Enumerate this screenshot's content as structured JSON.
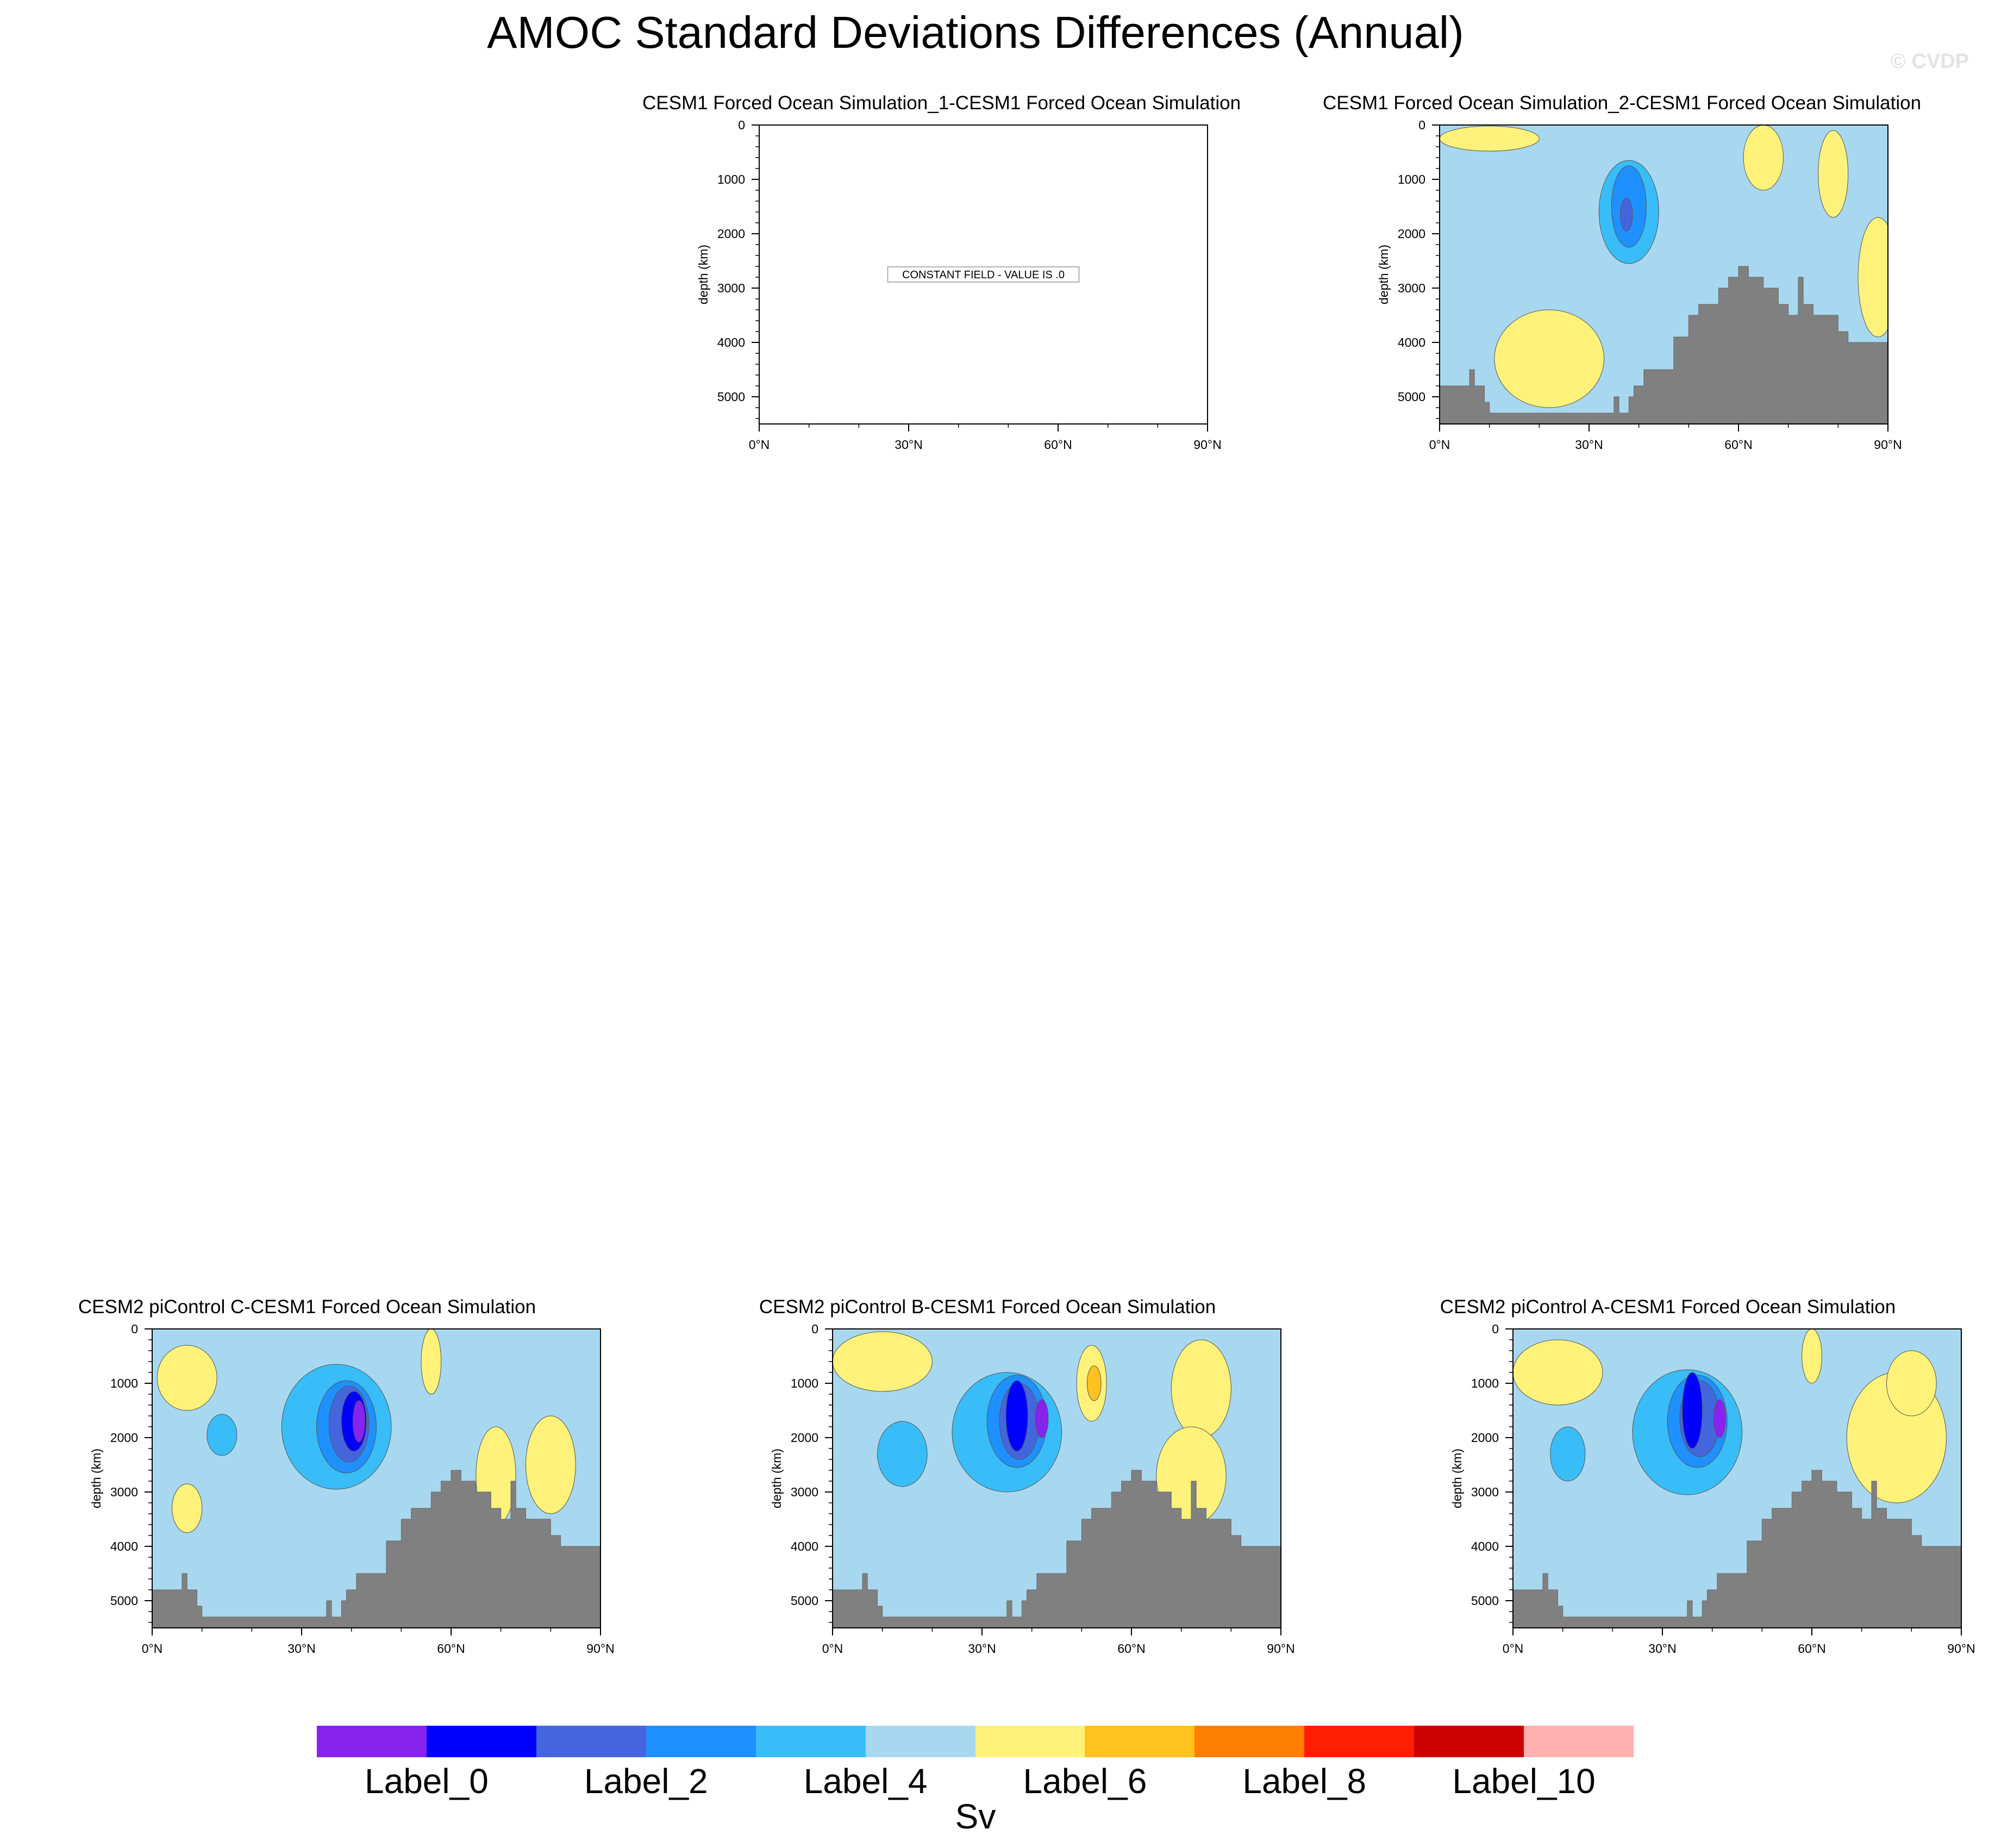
{
  "title": "AMOC Standard Deviations Differences (Annual)",
  "watermark": "© CVDP",
  "colorbar": {
    "colors": [
      "#8822ee",
      "#0000ff",
      "#4466dd",
      "#1e90ff",
      "#38bdf8",
      "#a8d8ef",
      "#fff27a",
      "#ffc21f",
      "#ff7f00",
      "#ff1e00",
      "#cc0000",
      "#ffb0b0"
    ],
    "labels": [
      "Label_0",
      "Label_2",
      "Label_4",
      "Label_6",
      "Label_8",
      "Label_10"
    ],
    "units": "Sv"
  },
  "chart_data": [
    {
      "type": "contour",
      "title": "CESM1 Forced Ocean Simulation_1-CESM1 Forced Ocean Simulation",
      "xlabel": "",
      "ylabel": "depth (km)",
      "xticks": [
        "0°N",
        "30°N",
        "60°N",
        "90°N"
      ],
      "yticks": [
        "0",
        "1000",
        "2000",
        "3000",
        "4000",
        "5000"
      ],
      "xlim": [
        0,
        90
      ],
      "ylim": [
        5500,
        0
      ],
      "constant_field": true,
      "note": "CONSTANT FIELD - VALUE IS .0"
    },
    {
      "type": "contour",
      "title": "CESM1 Forced Ocean Simulation_2-CESM1 Forced Ocean Simulation",
      "xlabel": "",
      "ylabel": "depth (km)",
      "xticks": [
        "0°N",
        "30°N",
        "60°N",
        "90°N"
      ],
      "yticks": [
        "0",
        "1000",
        "2000",
        "3000",
        "4000",
        "5000"
      ],
      "xlim": [
        0,
        90
      ],
      "ylim": [
        5500,
        0
      ],
      "background_level": 5,
      "blobs": [
        {
          "lat": 10,
          "depth": 250,
          "rlat": 10,
          "rdep": 230,
          "level": 6
        },
        {
          "lat": 65,
          "depth": 600,
          "rlat": 4,
          "rdep": 600,
          "level": 6
        },
        {
          "lat": 79,
          "depth": 900,
          "rlat": 3,
          "rdep": 800,
          "level": 6
        },
        {
          "lat": 88,
          "depth": 2800,
          "rlat": 4,
          "rdep": 1100,
          "level": 6
        },
        {
          "lat": 22,
          "depth": 4300,
          "rlat": 11,
          "rdep": 900,
          "level": 6
        },
        {
          "lat": 38,
          "depth": 1600,
          "rlat": 6,
          "rdep": 950,
          "level": 4
        },
        {
          "lat": 38,
          "depth": 1500,
          "rlat": 3.5,
          "rdep": 750,
          "level": 3
        },
        {
          "lat": 37.5,
          "depth": 1650,
          "rlat": 1.2,
          "rdep": 300,
          "level": 2
        }
      ],
      "topography": [
        [
          0,
          4800
        ],
        [
          6,
          4800
        ],
        [
          6,
          4500
        ],
        [
          7,
          4500
        ],
        [
          7,
          4800
        ],
        [
          9,
          4800
        ],
        [
          9,
          5100
        ],
        [
          10,
          5100
        ],
        [
          10,
          5300
        ],
        [
          35,
          5300
        ],
        [
          35,
          5000
        ],
        [
          36,
          5000
        ],
        [
          36,
          5300
        ],
        [
          38,
          5300
        ],
        [
          38,
          5000
        ],
        [
          39,
          5000
        ],
        [
          39,
          4800
        ],
        [
          41,
          4800
        ],
        [
          41,
          4500
        ],
        [
          47,
          4500
        ],
        [
          47,
          3900
        ],
        [
          50,
          3900
        ],
        [
          50,
          3500
        ],
        [
          52,
          3500
        ],
        [
          52,
          3300
        ],
        [
          56,
          3300
        ],
        [
          56,
          3000
        ],
        [
          58,
          3000
        ],
        [
          58,
          2800
        ],
        [
          60,
          2800
        ],
        [
          60,
          2600
        ],
        [
          62,
          2600
        ],
        [
          62,
          2800
        ],
        [
          65,
          2800
        ],
        [
          65,
          3000
        ],
        [
          68,
          3000
        ],
        [
          68,
          3300
        ],
        [
          70,
          3300
        ],
        [
          70,
          3500
        ],
        [
          72,
          3500
        ],
        [
          72,
          2800
        ],
        [
          73,
          2800
        ],
        [
          73,
          3300
        ],
        [
          75,
          3300
        ],
        [
          75,
          3500
        ],
        [
          80,
          3500
        ],
        [
          80,
          3800
        ],
        [
          82,
          3800
        ],
        [
          82,
          4000
        ],
        [
          90,
          4000
        ]
      ]
    },
    {
      "type": "contour",
      "title": "CESM2 piControl C-CESM1 Forced Ocean Simulation",
      "xlabel": "",
      "ylabel": "depth (km)",
      "xticks": [
        "0°N",
        "30°N",
        "60°N",
        "90°N"
      ],
      "yticks": [
        "0",
        "1000",
        "2000",
        "3000",
        "4000",
        "5000"
      ],
      "xlim": [
        0,
        90
      ],
      "ylim": [
        5500,
        0
      ],
      "background_level": 5,
      "blobs": [
        {
          "lat": 7,
          "depth": 900,
          "rlat": 6,
          "rdep": 600,
          "level": 6
        },
        {
          "lat": 7,
          "depth": 3300,
          "rlat": 3,
          "rdep": 450,
          "level": 6
        },
        {
          "lat": 69,
          "depth": 2700,
          "rlat": 4,
          "rdep": 900,
          "level": 6
        },
        {
          "lat": 80,
          "depth": 2500,
          "rlat": 5,
          "rdep": 900,
          "level": 6
        },
        {
          "lat": 56,
          "depth": 600,
          "rlat": 2,
          "rdep": 600,
          "level": 6
        },
        {
          "lat": 14,
          "depth": 1950,
          "rlat": 3,
          "rdep": 380,
          "level": 4
        },
        {
          "lat": 37,
          "depth": 1800,
          "rlat": 11,
          "rdep": 1150,
          "level": 4
        },
        {
          "lat": 39,
          "depth": 1800,
          "rlat": 6,
          "rdep": 850,
          "level": 3
        },
        {
          "lat": 39.5,
          "depth": 1750,
          "rlat": 4,
          "rdep": 700,
          "level": 2
        },
        {
          "lat": 40.5,
          "depth": 1700,
          "rlat": 2.5,
          "rdep": 550,
          "level": 1
        },
        {
          "lat": 41.5,
          "depth": 1700,
          "rlat": 1.2,
          "rdep": 380,
          "level": 0
        }
      ],
      "topography": [
        [
          0,
          4800
        ],
        [
          6,
          4800
        ],
        [
          6,
          4500
        ],
        [
          7,
          4500
        ],
        [
          7,
          4800
        ],
        [
          9,
          4800
        ],
        [
          9,
          5100
        ],
        [
          10,
          5100
        ],
        [
          10,
          5300
        ],
        [
          35,
          5300
        ],
        [
          35,
          5000
        ],
        [
          36,
          5000
        ],
        [
          36,
          5300
        ],
        [
          38,
          5300
        ],
        [
          38,
          5000
        ],
        [
          39,
          5000
        ],
        [
          39,
          4800
        ],
        [
          41,
          4800
        ],
        [
          41,
          4500
        ],
        [
          47,
          4500
        ],
        [
          47,
          3900
        ],
        [
          50,
          3900
        ],
        [
          50,
          3500
        ],
        [
          52,
          3500
        ],
        [
          52,
          3300
        ],
        [
          56,
          3300
        ],
        [
          56,
          3000
        ],
        [
          58,
          3000
        ],
        [
          58,
          2800
        ],
        [
          60,
          2800
        ],
        [
          60,
          2600
        ],
        [
          62,
          2600
        ],
        [
          62,
          2800
        ],
        [
          65,
          2800
        ],
        [
          65,
          3000
        ],
        [
          68,
          3000
        ],
        [
          68,
          3300
        ],
        [
          70,
          3300
        ],
        [
          70,
          3500
        ],
        [
          72,
          3500
        ],
        [
          72,
          2800
        ],
        [
          73,
          2800
        ],
        [
          73,
          3300
        ],
        [
          75,
          3300
        ],
        [
          75,
          3500
        ],
        [
          80,
          3500
        ],
        [
          80,
          3800
        ],
        [
          82,
          3800
        ],
        [
          82,
          4000
        ],
        [
          90,
          4000
        ]
      ]
    },
    {
      "type": "contour",
      "title": "CESM2 piControl B-CESM1 Forced Ocean Simulation",
      "xlabel": "",
      "ylabel": "depth (km)",
      "xticks": [
        "0°N",
        "30°N",
        "60°N",
        "90°N"
      ],
      "yticks": [
        "0",
        "1000",
        "2000",
        "3000",
        "4000",
        "5000"
      ],
      "xlim": [
        0,
        90
      ],
      "ylim": [
        5500,
        0
      ],
      "background_level": 5,
      "blobs": [
        {
          "lat": 10,
          "depth": 600,
          "rlat": 10,
          "rdep": 550,
          "level": 6
        },
        {
          "lat": 74,
          "depth": 1100,
          "rlat": 6,
          "rdep": 900,
          "level": 6
        },
        {
          "lat": 72,
          "depth": 2700,
          "rlat": 7,
          "rdep": 900,
          "level": 6
        },
        {
          "lat": 52,
          "depth": 1000,
          "rlat": 3,
          "rdep": 700,
          "level": 6
        },
        {
          "lat": 52.5,
          "depth": 1000,
          "rlat": 1.4,
          "rdep": 320,
          "level": 7
        },
        {
          "lat": 14,
          "depth": 2300,
          "rlat": 5,
          "rdep": 600,
          "level": 4
        },
        {
          "lat": 35,
          "depth": 1900,
          "rlat": 11,
          "rdep": 1100,
          "level": 4
        },
        {
          "lat": 37,
          "depth": 1700,
          "rlat": 6,
          "rdep": 850,
          "level": 3
        },
        {
          "lat": 37.5,
          "depth": 1700,
          "rlat": 4,
          "rdep": 700,
          "level": 2
        },
        {
          "lat": 37,
          "depth": 1600,
          "rlat": 2.2,
          "rdep": 650,
          "level": 1
        },
        {
          "lat": 42,
          "depth": 1650,
          "rlat": 1.3,
          "rdep": 350,
          "level": 0
        }
      ],
      "topography": [
        [
          0,
          4800
        ],
        [
          6,
          4800
        ],
        [
          6,
          4500
        ],
        [
          7,
          4500
        ],
        [
          7,
          4800
        ],
        [
          9,
          4800
        ],
        [
          9,
          5100
        ],
        [
          10,
          5100
        ],
        [
          10,
          5300
        ],
        [
          35,
          5300
        ],
        [
          35,
          5000
        ],
        [
          36,
          5000
        ],
        [
          36,
          5300
        ],
        [
          38,
          5300
        ],
        [
          38,
          5000
        ],
        [
          39,
          5000
        ],
        [
          39,
          4800
        ],
        [
          41,
          4800
        ],
        [
          41,
          4500
        ],
        [
          47,
          4500
        ],
        [
          47,
          3900
        ],
        [
          50,
          3900
        ],
        [
          50,
          3500
        ],
        [
          52,
          3500
        ],
        [
          52,
          3300
        ],
        [
          56,
          3300
        ],
        [
          56,
          3000
        ],
        [
          58,
          3000
        ],
        [
          58,
          2800
        ],
        [
          60,
          2800
        ],
        [
          60,
          2600
        ],
        [
          62,
          2600
        ],
        [
          62,
          2800
        ],
        [
          65,
          2800
        ],
        [
          65,
          3000
        ],
        [
          68,
          3000
        ],
        [
          68,
          3300
        ],
        [
          70,
          3300
        ],
        [
          70,
          3500
        ],
        [
          72,
          3500
        ],
        [
          72,
          2800
        ],
        [
          73,
          2800
        ],
        [
          73,
          3300
        ],
        [
          75,
          3300
        ],
        [
          75,
          3500
        ],
        [
          80,
          3500
        ],
        [
          80,
          3800
        ],
        [
          82,
          3800
        ],
        [
          82,
          4000
        ],
        [
          90,
          4000
        ]
      ]
    },
    {
      "type": "contour",
      "title": "CESM2 piControl A-CESM1 Forced Ocean Simulation",
      "xlabel": "",
      "ylabel": "depth (km)",
      "xticks": [
        "0°N",
        "30°N",
        "60°N",
        "90°N"
      ],
      "yticks": [
        "0",
        "1000",
        "2000",
        "3000",
        "4000",
        "5000"
      ],
      "xlim": [
        0,
        90
      ],
      "ylim": [
        5500,
        0
      ],
      "background_level": 5,
      "blobs": [
        {
          "lat": 9,
          "depth": 800,
          "rlat": 9,
          "rdep": 600,
          "level": 6
        },
        {
          "lat": 77,
          "depth": 2000,
          "rlat": 10,
          "rdep": 1200,
          "level": 6
        },
        {
          "lat": 60,
          "depth": 500,
          "rlat": 2,
          "rdep": 500,
          "level": 6
        },
        {
          "lat": 80,
          "depth": 1000,
          "rlat": 5,
          "rdep": 600,
          "level": 6
        },
        {
          "lat": 11,
          "depth": 2300,
          "rlat": 3.5,
          "rdep": 500,
          "level": 4
        },
        {
          "lat": 35,
          "depth": 1900,
          "rlat": 11,
          "rdep": 1150,
          "level": 4
        },
        {
          "lat": 37,
          "depth": 1700,
          "rlat": 6,
          "rdep": 850,
          "level": 3
        },
        {
          "lat": 37.5,
          "depth": 1650,
          "rlat": 4,
          "rdep": 700,
          "level": 2
        },
        {
          "lat": 36,
          "depth": 1500,
          "rlat": 2,
          "rdep": 700,
          "level": 1
        },
        {
          "lat": 41.5,
          "depth": 1650,
          "rlat": 1.2,
          "rdep": 350,
          "level": 0
        }
      ],
      "topography": [
        [
          0,
          4800
        ],
        [
          6,
          4800
        ],
        [
          6,
          4500
        ],
        [
          7,
          4500
        ],
        [
          7,
          4800
        ],
        [
          9,
          4800
        ],
        [
          9,
          5100
        ],
        [
          10,
          5100
        ],
        [
          10,
          5300
        ],
        [
          35,
          5300
        ],
        [
          35,
          5000
        ],
        [
          36,
          5000
        ],
        [
          36,
          5300
        ],
        [
          38,
          5300
        ],
        [
          38,
          5000
        ],
        [
          39,
          5000
        ],
        [
          39,
          4800
        ],
        [
          41,
          4800
        ],
        [
          41,
          4500
        ],
        [
          47,
          4500
        ],
        [
          47,
          3900
        ],
        [
          50,
          3900
        ],
        [
          50,
          3500
        ],
        [
          52,
          3500
        ],
        [
          52,
          3300
        ],
        [
          56,
          3300
        ],
        [
          56,
          3000
        ],
        [
          58,
          3000
        ],
        [
          58,
          2800
        ],
        [
          60,
          2800
        ],
        [
          60,
          2600
        ],
        [
          62,
          2600
        ],
        [
          62,
          2800
        ],
        [
          65,
          2800
        ],
        [
          65,
          3000
        ],
        [
          68,
          3000
        ],
        [
          68,
          3300
        ],
        [
          70,
          3300
        ],
        [
          70,
          3500
        ],
        [
          72,
          3500
        ],
        [
          72,
          2800
        ],
        [
          73,
          2800
        ],
        [
          73,
          3300
        ],
        [
          75,
          3300
        ],
        [
          75,
          3500
        ],
        [
          80,
          3500
        ],
        [
          80,
          3800
        ],
        [
          82,
          3800
        ],
        [
          82,
          4000
        ],
        [
          90,
          4000
        ]
      ]
    }
  ]
}
